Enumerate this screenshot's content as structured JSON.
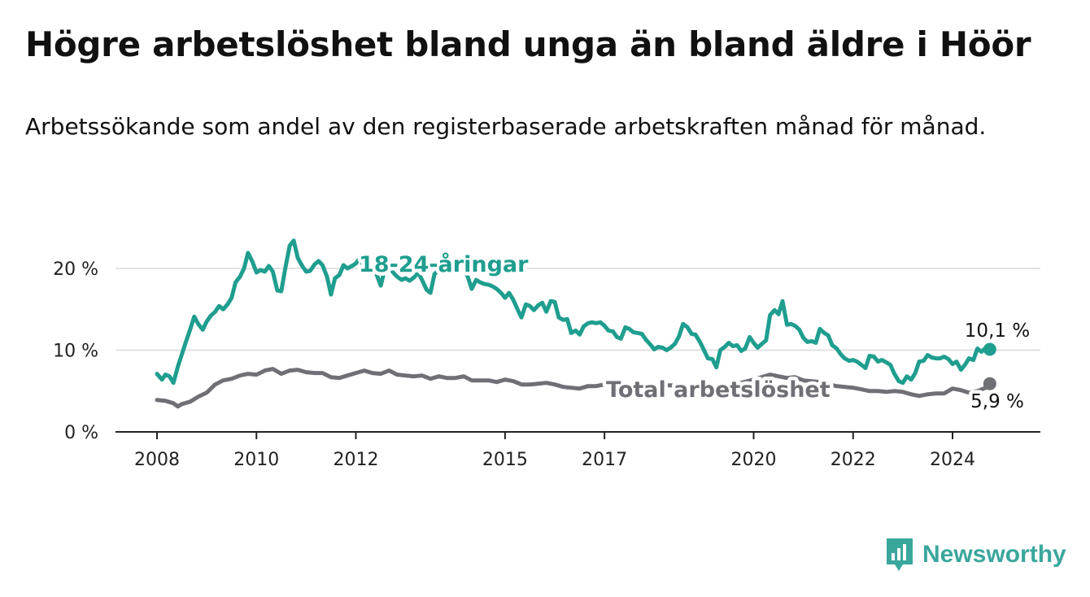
{
  "title": "Högre arbetslöshet bland unga än bland äldre i Höör",
  "subtitle": "Arbetssökande som andel av den registerbaserade arbetskraften månad för månad.",
  "brand": "Newsworthy",
  "colors": {
    "youth": "#1f9e8f",
    "total": "#6f6f76",
    "brand": "#3aa79c"
  },
  "chart_data": {
    "type": "line",
    "ylim": [
      0,
      20
    ],
    "ytick_labels": [
      "0 %",
      "10 %",
      "20 %"
    ],
    "ytick_values": [
      0,
      10,
      20
    ],
    "xtick_labels": [
      "2008",
      "2010",
      "2012",
      "2015",
      "2017",
      "2020",
      "2022",
      "2024"
    ],
    "xtick_values": [
      2008,
      2010,
      2012,
      2015,
      2017,
      2020,
      2022,
      2024
    ],
    "grid": "horizontal",
    "series": [
      {
        "name": "18-24-åringar",
        "end_label": "10,1 %",
        "points": [
          [
            2008.0,
            7.1
          ],
          [
            2008.1,
            6.4
          ],
          [
            2008.17,
            7.0
          ],
          [
            2008.25,
            6.8
          ],
          [
            2008.33,
            6.0
          ],
          [
            2008.42,
            8.0
          ],
          [
            2008.5,
            9.5
          ],
          [
            2008.58,
            11.0
          ],
          [
            2008.67,
            12.6
          ],
          [
            2008.75,
            14.1
          ],
          [
            2008.83,
            13.2
          ],
          [
            2008.92,
            12.5
          ],
          [
            2009.0,
            13.5
          ],
          [
            2009.08,
            14.2
          ],
          [
            2009.17,
            14.7
          ],
          [
            2009.25,
            15.4
          ],
          [
            2009.33,
            15.0
          ],
          [
            2009.42,
            15.6
          ],
          [
            2009.5,
            16.4
          ],
          [
            2009.58,
            18.3
          ],
          [
            2009.67,
            19.0
          ],
          [
            2009.75,
            20.0
          ],
          [
            2009.83,
            21.9
          ],
          [
            2009.92,
            20.8
          ],
          [
            2010.0,
            19.5
          ],
          [
            2010.08,
            19.8
          ],
          [
            2010.17,
            19.6
          ],
          [
            2010.25,
            20.3
          ],
          [
            2010.33,
            19.6
          ],
          [
            2010.42,
            17.3
          ],
          [
            2010.5,
            17.2
          ],
          [
            2010.58,
            20.0
          ],
          [
            2010.67,
            22.8
          ],
          [
            2010.75,
            23.4
          ],
          [
            2010.83,
            21.3
          ],
          [
            2010.92,
            20.3
          ],
          [
            2011.0,
            19.6
          ],
          [
            2011.08,
            19.7
          ],
          [
            2011.17,
            20.5
          ],
          [
            2011.25,
            20.9
          ],
          [
            2011.33,
            20.4
          ],
          [
            2011.42,
            19.0
          ],
          [
            2011.5,
            16.8
          ],
          [
            2011.58,
            18.8
          ],
          [
            2011.67,
            19.2
          ],
          [
            2011.75,
            20.4
          ],
          [
            2011.83,
            20.0
          ],
          [
            2011.92,
            20.3
          ],
          [
            2012.0,
            20.6
          ],
          [
            2012.08,
            21.3
          ],
          [
            2012.17,
            20.1
          ],
          [
            2012.25,
            19.4
          ],
          [
            2012.33,
            20.2
          ],
          [
            2012.42,
            19.2
          ],
          [
            2012.5,
            17.9
          ],
          [
            2012.58,
            19.9
          ],
          [
            2012.67,
            20.2
          ],
          [
            2012.75,
            19.5
          ],
          [
            2012.83,
            19.0
          ],
          [
            2012.92,
            18.6
          ],
          [
            2013.0,
            18.8
          ],
          [
            2013.08,
            18.5
          ],
          [
            2013.17,
            18.9
          ],
          [
            2013.25,
            19.5
          ],
          [
            2013.33,
            18.6
          ],
          [
            2013.42,
            17.4
          ],
          [
            2013.5,
            17.0
          ],
          [
            2013.58,
            19.3
          ],
          [
            2013.67,
            19.8
          ],
          [
            2013.75,
            20.5
          ],
          [
            2013.83,
            21.0
          ],
          [
            2013.92,
            20.8
          ],
          [
            2014.0,
            20.9
          ],
          [
            2014.08,
            20.3
          ],
          [
            2014.17,
            19.8
          ],
          [
            2014.25,
            19.0
          ],
          [
            2014.33,
            17.5
          ],
          [
            2014.42,
            18.6
          ],
          [
            2014.5,
            18.3
          ],
          [
            2014.58,
            18.1
          ],
          [
            2014.67,
            18.0
          ],
          [
            2014.75,
            17.8
          ],
          [
            2014.83,
            17.5
          ],
          [
            2014.92,
            17.0
          ],
          [
            2015.0,
            16.4
          ],
          [
            2015.08,
            17.0
          ],
          [
            2015.17,
            16.1
          ],
          [
            2015.25,
            15.0
          ],
          [
            2015.33,
            14.0
          ],
          [
            2015.42,
            15.6
          ],
          [
            2015.5,
            15.4
          ],
          [
            2015.58,
            14.9
          ],
          [
            2015.67,
            15.5
          ],
          [
            2015.75,
            15.8
          ],
          [
            2015.83,
            14.7
          ],
          [
            2015.92,
            16.0
          ],
          [
            2016.0,
            15.9
          ],
          [
            2016.08,
            14.0
          ],
          [
            2016.17,
            13.7
          ],
          [
            2016.25,
            13.8
          ],
          [
            2016.33,
            12.1
          ],
          [
            2016.42,
            12.4
          ],
          [
            2016.5,
            11.9
          ],
          [
            2016.58,
            12.9
          ],
          [
            2016.67,
            13.3
          ],
          [
            2016.75,
            13.4
          ],
          [
            2016.83,
            13.3
          ],
          [
            2016.92,
            13.4
          ],
          [
            2017.0,
            13.0
          ],
          [
            2017.08,
            12.4
          ],
          [
            2017.17,
            12.3
          ],
          [
            2017.25,
            11.6
          ],
          [
            2017.33,
            11.4
          ],
          [
            2017.42,
            12.8
          ],
          [
            2017.5,
            12.6
          ],
          [
            2017.58,
            12.2
          ],
          [
            2017.67,
            12.1
          ],
          [
            2017.75,
            12.0
          ],
          [
            2017.83,
            11.3
          ],
          [
            2017.92,
            10.7
          ],
          [
            2018.0,
            10.1
          ],
          [
            2018.08,
            10.4
          ],
          [
            2018.17,
            10.3
          ],
          [
            2018.25,
            10.0
          ],
          [
            2018.33,
            10.3
          ],
          [
            2018.42,
            10.8
          ],
          [
            2018.5,
            11.7
          ],
          [
            2018.58,
            13.2
          ],
          [
            2018.67,
            12.8
          ],
          [
            2018.75,
            12.0
          ],
          [
            2018.83,
            11.9
          ],
          [
            2018.92,
            11.0
          ],
          [
            2019.0,
            10.0
          ],
          [
            2019.08,
            9.0
          ],
          [
            2019.17,
            8.9
          ],
          [
            2019.25,
            7.9
          ],
          [
            2019.33,
            10.0
          ],
          [
            2019.42,
            10.4
          ],
          [
            2019.5,
            10.9
          ],
          [
            2019.58,
            10.5
          ],
          [
            2019.67,
            10.6
          ],
          [
            2019.75,
            9.9
          ],
          [
            2019.83,
            10.2
          ],
          [
            2019.92,
            11.6
          ],
          [
            2020.0,
            10.9
          ],
          [
            2020.08,
            10.3
          ],
          [
            2020.17,
            10.8
          ],
          [
            2020.25,
            11.2
          ],
          [
            2020.33,
            14.3
          ],
          [
            2020.42,
            14.9
          ],
          [
            2020.5,
            14.4
          ],
          [
            2020.58,
            16.0
          ],
          [
            2020.67,
            13.1
          ],
          [
            2020.75,
            13.2
          ],
          [
            2020.83,
            13.0
          ],
          [
            2020.92,
            12.5
          ],
          [
            2021.0,
            11.5
          ],
          [
            2021.08,
            11.0
          ],
          [
            2021.17,
            11.1
          ],
          [
            2021.25,
            10.9
          ],
          [
            2021.33,
            12.6
          ],
          [
            2021.42,
            12.1
          ],
          [
            2021.5,
            11.8
          ],
          [
            2021.58,
            10.6
          ],
          [
            2021.67,
            10.2
          ],
          [
            2021.75,
            9.5
          ],
          [
            2021.83,
            9.0
          ],
          [
            2021.92,
            8.7
          ],
          [
            2022.0,
            8.8
          ],
          [
            2022.08,
            8.6
          ],
          [
            2022.17,
            8.2
          ],
          [
            2022.25,
            7.8
          ],
          [
            2022.33,
            9.3
          ],
          [
            2022.42,
            9.2
          ],
          [
            2022.5,
            8.6
          ],
          [
            2022.58,
            8.8
          ],
          [
            2022.67,
            8.5
          ],
          [
            2022.75,
            8.2
          ],
          [
            2022.83,
            7.1
          ],
          [
            2022.92,
            6.2
          ],
          [
            2023.0,
            6.0
          ],
          [
            2023.08,
            6.8
          ],
          [
            2023.17,
            6.4
          ],
          [
            2023.25,
            7.2
          ],
          [
            2023.33,
            8.6
          ],
          [
            2023.42,
            8.7
          ],
          [
            2023.5,
            9.4
          ],
          [
            2023.58,
            9.1
          ],
          [
            2023.67,
            9.0
          ],
          [
            2023.75,
            9.0
          ],
          [
            2023.83,
            9.2
          ],
          [
            2023.92,
            8.9
          ],
          [
            2024.0,
            8.3
          ],
          [
            2024.08,
            8.6
          ],
          [
            2024.17,
            7.6
          ],
          [
            2024.25,
            8.2
          ],
          [
            2024.33,
            9.0
          ],
          [
            2024.42,
            8.8
          ],
          [
            2024.5,
            10.2
          ],
          [
            2024.58,
            9.8
          ],
          [
            2024.67,
            10.3
          ],
          [
            2024.75,
            10.1
          ]
        ]
      },
      {
        "name": "Total arbetslöshet",
        "end_label": "5,9 %",
        "points": [
          [
            2008.0,
            3.9
          ],
          [
            2008.17,
            3.8
          ],
          [
            2008.33,
            3.5
          ],
          [
            2008.42,
            3.1
          ],
          [
            2008.5,
            3.4
          ],
          [
            2008.67,
            3.7
          ],
          [
            2008.83,
            4.3
          ],
          [
            2009.0,
            4.8
          ],
          [
            2009.17,
            5.8
          ],
          [
            2009.33,
            6.3
          ],
          [
            2009.5,
            6.5
          ],
          [
            2009.67,
            6.9
          ],
          [
            2009.83,
            7.1
          ],
          [
            2010.0,
            7.0
          ],
          [
            2010.17,
            7.5
          ],
          [
            2010.33,
            7.7
          ],
          [
            2010.5,
            7.1
          ],
          [
            2010.67,
            7.5
          ],
          [
            2010.83,
            7.6
          ],
          [
            2011.0,
            7.3
          ],
          [
            2011.17,
            7.2
          ],
          [
            2011.33,
            7.2
          ],
          [
            2011.5,
            6.7
          ],
          [
            2011.67,
            6.6
          ],
          [
            2011.83,
            6.9
          ],
          [
            2012.0,
            7.2
          ],
          [
            2012.17,
            7.5
          ],
          [
            2012.33,
            7.2
          ],
          [
            2012.5,
            7.1
          ],
          [
            2012.67,
            7.5
          ],
          [
            2012.83,
            7.0
          ],
          [
            2013.0,
            6.9
          ],
          [
            2013.17,
            6.8
          ],
          [
            2013.33,
            6.9
          ],
          [
            2013.5,
            6.5
          ],
          [
            2013.67,
            6.8
          ],
          [
            2013.83,
            6.6
          ],
          [
            2014.0,
            6.6
          ],
          [
            2014.17,
            6.8
          ],
          [
            2014.33,
            6.3
          ],
          [
            2014.5,
            6.3
          ],
          [
            2014.67,
            6.3
          ],
          [
            2014.83,
            6.1
          ],
          [
            2015.0,
            6.4
          ],
          [
            2015.17,
            6.2
          ],
          [
            2015.33,
            5.8
          ],
          [
            2015.5,
            5.8
          ],
          [
            2015.67,
            5.9
          ],
          [
            2015.83,
            6.0
          ],
          [
            2016.0,
            5.8
          ],
          [
            2016.17,
            5.5
          ],
          [
            2016.33,
            5.4
          ],
          [
            2016.5,
            5.3
          ],
          [
            2016.67,
            5.6
          ],
          [
            2016.83,
            5.6
          ],
          [
            2017.0,
            5.8
          ],
          [
            2019.5,
            5.6
          ],
          [
            2020.0,
            6.4
          ],
          [
            2020.33,
            7.0
          ],
          [
            2020.5,
            6.8
          ],
          [
            2020.67,
            6.6
          ],
          [
            2020.83,
            6.7
          ],
          [
            2021.0,
            6.3
          ],
          [
            2021.17,
            6.2
          ],
          [
            2021.33,
            6.1
          ],
          [
            2021.5,
            5.8
          ],
          [
            2021.67,
            5.6
          ],
          [
            2021.83,
            5.5
          ],
          [
            2022.0,
            5.4
          ],
          [
            2022.17,
            5.2
          ],
          [
            2022.33,
            5.0
          ],
          [
            2022.5,
            5.0
          ],
          [
            2022.67,
            4.9
          ],
          [
            2022.83,
            5.0
          ],
          [
            2023.0,
            4.9
          ],
          [
            2023.17,
            4.6
          ],
          [
            2023.33,
            4.4
          ],
          [
            2023.5,
            4.6
          ],
          [
            2023.67,
            4.7
          ],
          [
            2023.83,
            4.7
          ],
          [
            2024.0,
            5.3
          ],
          [
            2024.17,
            5.1
          ],
          [
            2024.33,
            4.8
          ],
          [
            2024.5,
            5.0
          ],
          [
            2024.67,
            5.4
          ],
          [
            2024.75,
            5.9
          ]
        ]
      }
    ]
  }
}
